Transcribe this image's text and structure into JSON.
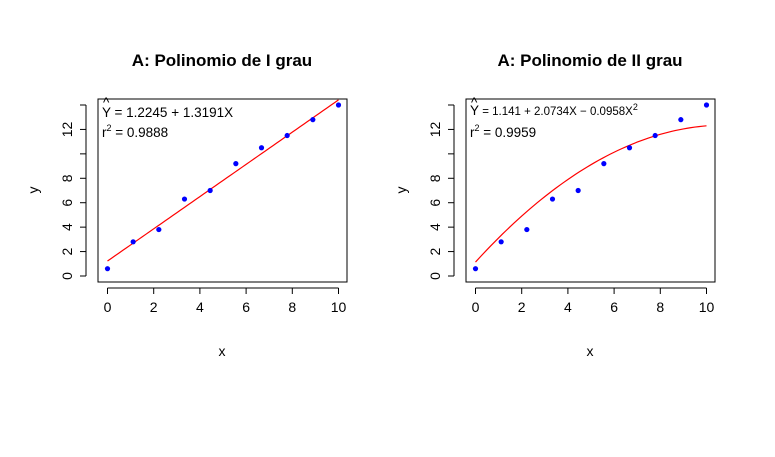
{
  "colors": {
    "points": "#0000ff",
    "fit_line": "#ff0000",
    "axes": "#000000",
    "background": "#ffffff"
  },
  "chart_data": [
    {
      "type": "scatter",
      "title": "A: Polinomio de I grau",
      "xlabel": "x",
      "ylabel": "y",
      "xlim": [
        0,
        10
      ],
      "ylim": [
        0,
        14
      ],
      "xticks": [
        "0",
        "2",
        "4",
        "6",
        "8",
        "10"
      ],
      "yticks": [
        "0",
        "2",
        "4",
        "6",
        "8",
        "12"
      ],
      "points": {
        "x": [
          0,
          1.111,
          2.222,
          3.333,
          4.444,
          5.556,
          6.667,
          7.778,
          8.889,
          10
        ],
        "y": [
          0.6,
          2.8,
          3.8,
          6.3,
          7.0,
          9.2,
          10.5,
          11.5,
          12.8,
          14.0
        ]
      },
      "fit": {
        "degree": 1,
        "intercept": 1.2245,
        "coef": [
          1.3191
        ]
      },
      "equation": {
        "hat": "^",
        "y_symbol": "Y",
        "rhs": " = 1.2245 + 1.3191X",
        "r2_base": "r",
        "r2_sup": "2",
        "r2_value": " = 0.9888"
      },
      "grid": false
    },
    {
      "type": "scatter",
      "title": "A: Polinomio de II grau",
      "xlabel": "x",
      "ylabel": "y",
      "xlim": [
        0,
        10
      ],
      "ylim": [
        0,
        14
      ],
      "xticks": [
        "0",
        "2",
        "4",
        "6",
        "8",
        "10"
      ],
      "yticks": [
        "0",
        "2",
        "4",
        "6",
        "8",
        "12"
      ],
      "points": {
        "x": [
          0,
          1.111,
          2.222,
          3.333,
          4.444,
          5.556,
          6.667,
          7.778,
          8.889,
          10
        ],
        "y": [
          0.6,
          2.8,
          3.8,
          6.3,
          7.0,
          9.2,
          10.5,
          11.5,
          12.8,
          14.0
        ]
      },
      "fit": {
        "degree": 2,
        "intercept": 1.141,
        "coef": [
          2.0734,
          -0.0958
        ]
      },
      "equation": {
        "hat": "^",
        "y_symbol": "Y",
        "rhs": " = 1.141 + 2.0734X − 0.0958X",
        "rhs_sup": "2",
        "r2_base": "r",
        "r2_sup": "2",
        "r2_value": " = 0.9959"
      },
      "grid": false
    }
  ]
}
